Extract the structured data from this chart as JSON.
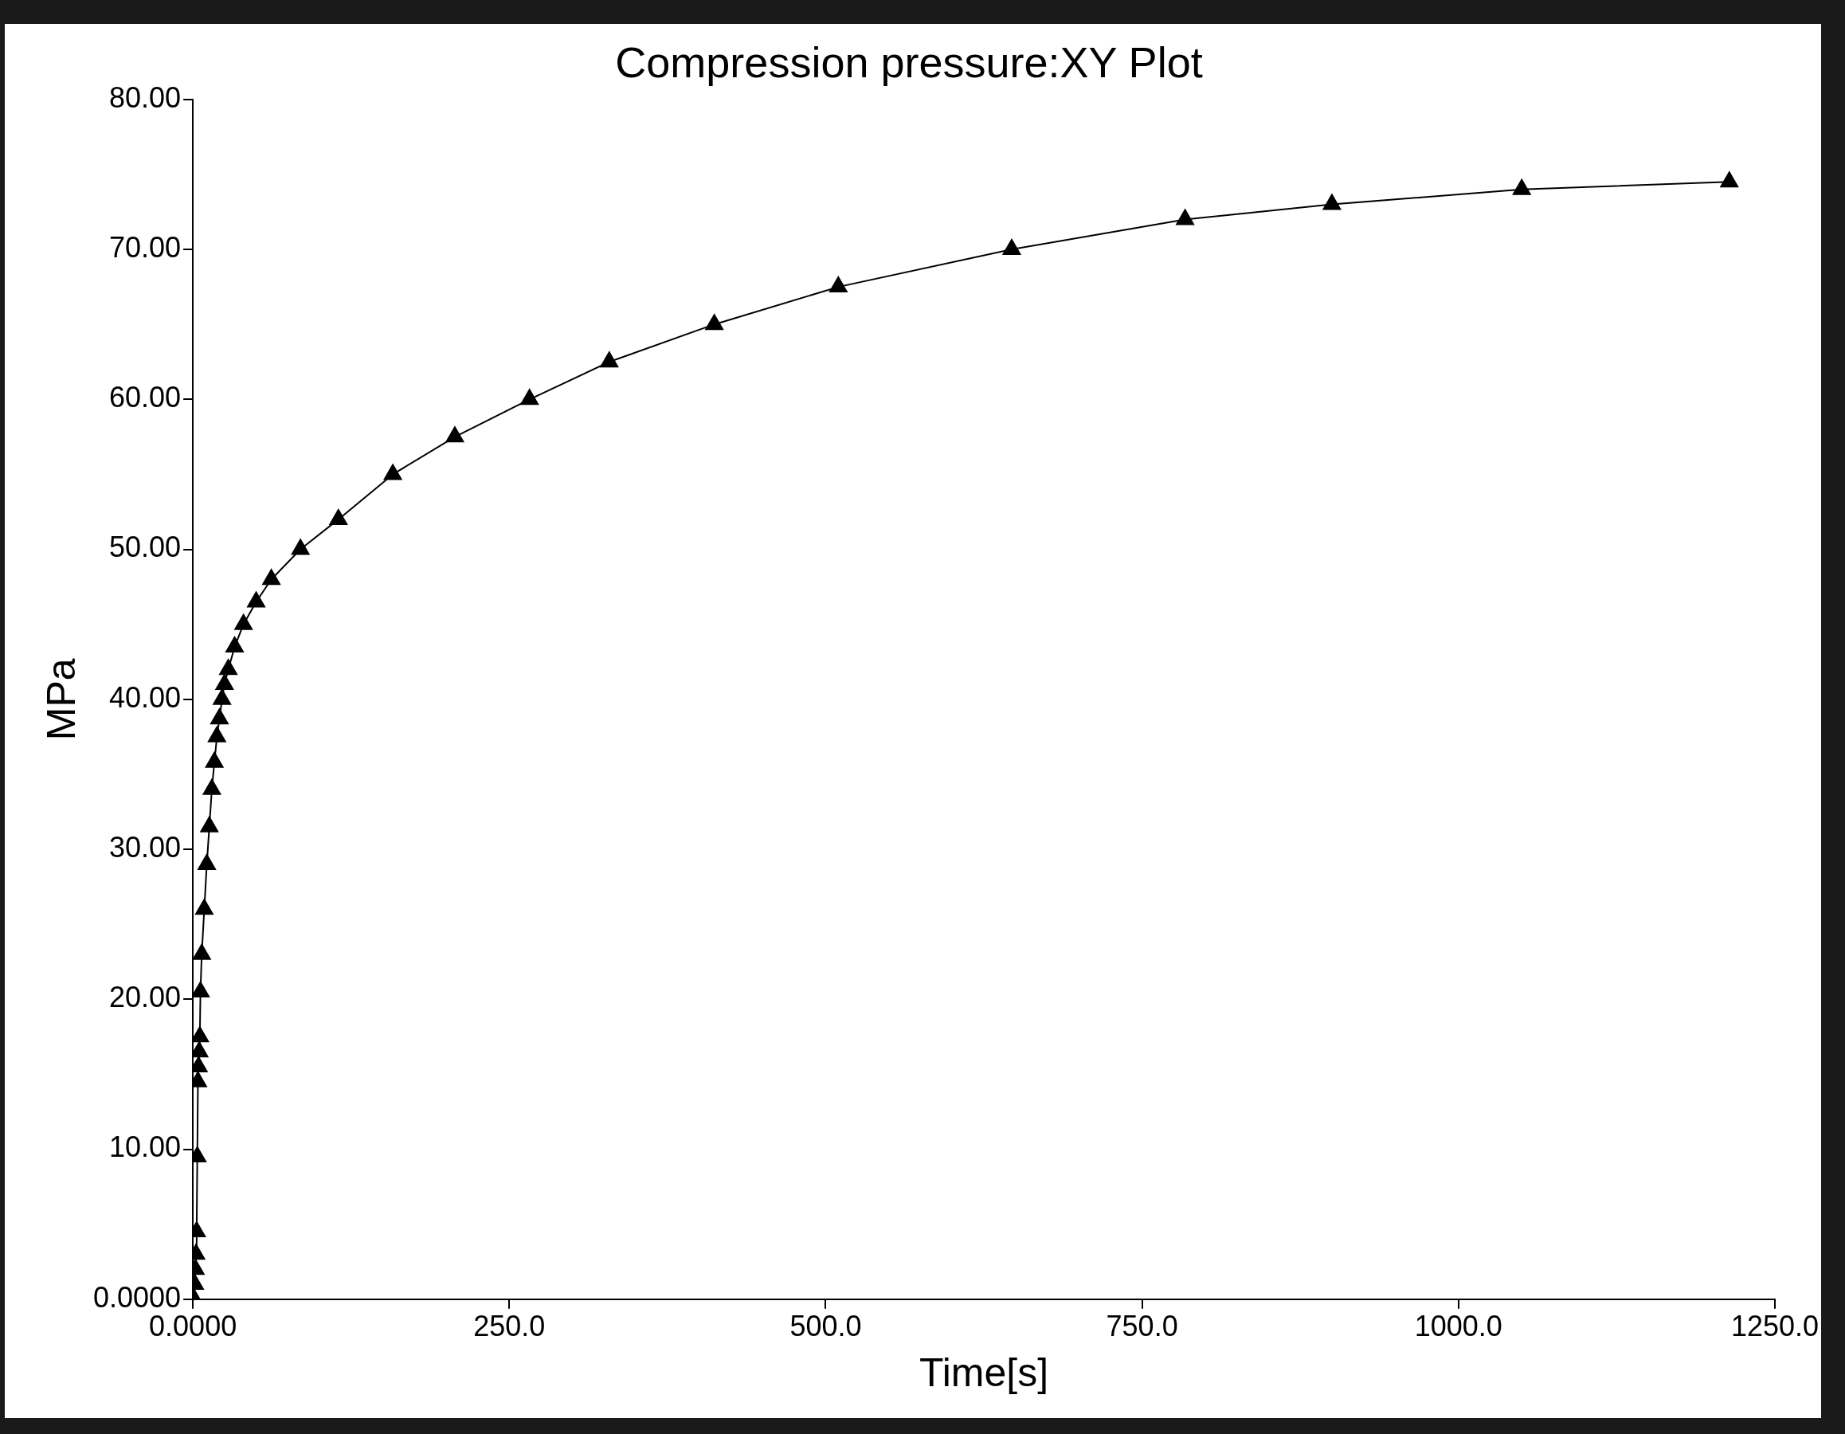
{
  "chart_data": {
    "type": "line",
    "title": "Compression pressure:XY Plot",
    "xlabel": "Time[s]",
    "ylabel": "MPa",
    "xlim": [
      0,
      1250
    ],
    "ylim": [
      0,
      80
    ],
    "xticks": [
      {
        "value": 0,
        "label": "0.0000"
      },
      {
        "value": 250,
        "label": "250.0"
      },
      {
        "value": 500,
        "label": "500.0"
      },
      {
        "value": 750,
        "label": "750.0"
      },
      {
        "value": 1000,
        "label": "1000.0"
      },
      {
        "value": 1250,
        "label": "1250.0"
      }
    ],
    "yticks": [
      {
        "value": 0,
        "label": "0.0000"
      },
      {
        "value": 10,
        "label": "10.00"
      },
      {
        "value": 20,
        "label": "20.00"
      },
      {
        "value": 30,
        "label": "30.00"
      },
      {
        "value": 40,
        "label": "40.00"
      },
      {
        "value": 50,
        "label": "50.00"
      },
      {
        "value": 60,
        "label": "60.00"
      },
      {
        "value": 70,
        "label": "70.00"
      },
      {
        "value": 80,
        "label": "80.00"
      }
    ],
    "grid": false,
    "legend": false,
    "marker": "triangle",
    "line_style": "solid",
    "series": [
      {
        "color": "#000000",
        "x": [
          1,
          1.5,
          2,
          2.5,
          3,
          3.5,
          4,
          4.5,
          5,
          5.5,
          6,
          7,
          9,
          11,
          13,
          15,
          17,
          19,
          21,
          23,
          25,
          28,
          33,
          40,
          50,
          62,
          85,
          115,
          158,
          207,
          266,
          329,
          412,
          510,
          647,
          784,
          900,
          1050,
          1214
        ],
        "values": [
          0,
          1,
          2,
          3,
          4.5,
          9.5,
          14.5,
          15.5,
          16.5,
          17.5,
          20.5,
          23,
          26,
          29,
          31.5,
          34,
          35.8,
          37.5,
          38.7,
          40,
          41,
          42,
          43.5,
          45,
          46.5,
          48,
          50,
          52,
          55,
          57.5,
          60,
          62.5,
          65,
          67.5,
          70,
          72,
          73,
          74,
          74.5
        ]
      }
    ]
  }
}
